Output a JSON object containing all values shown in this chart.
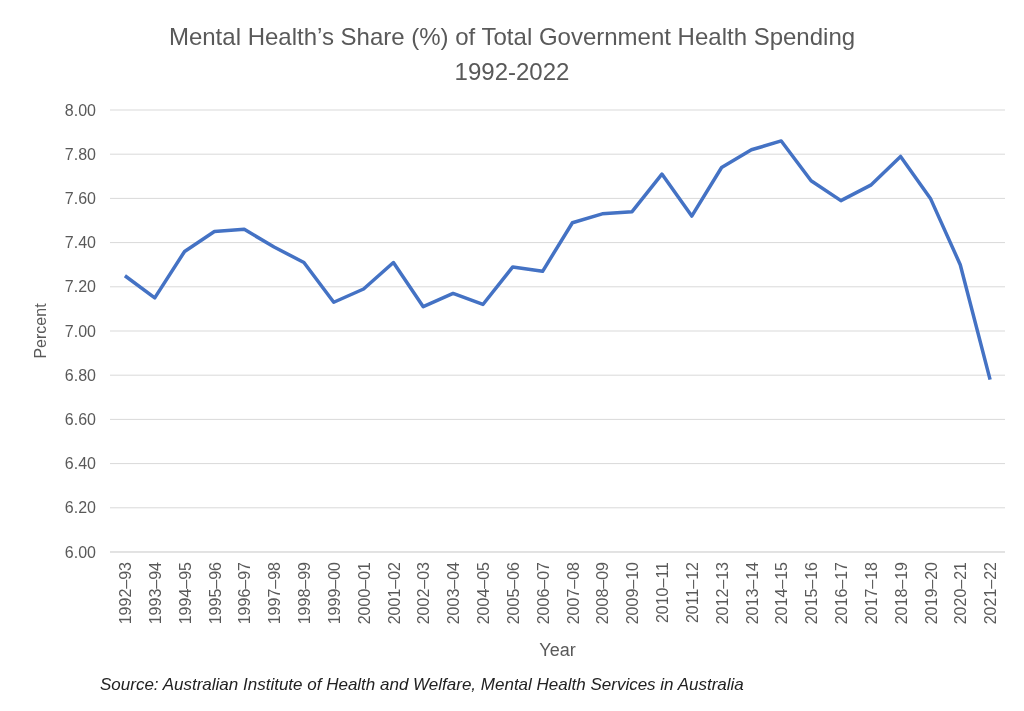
{
  "chart_data": {
    "type": "line",
    "title": "Mental Health’s Share (%) of Total Government Health Spending",
    "subtitle": "1992-2022",
    "xlabel": "Year",
    "ylabel": "Percent",
    "annotations": [
      "Source: Australian Institute of Health and Welfare, Mental Health Services in Australia"
    ],
    "categories": [
      "1992–93",
      "1993–94",
      "1994–95",
      "1995–96",
      "1996–97",
      "1997–98",
      "1998–99",
      "1999–00",
      "2000–01",
      "2001–02",
      "2002–03",
      "2003–04",
      "2004–05",
      "2005–06",
      "2006–07",
      "2007–08",
      "2008–09",
      "2009–10",
      "2010–11",
      "2011–12",
      "2012–13",
      "2013–14",
      "2014–15",
      "2015–16",
      "2016–17",
      "2017–18",
      "2018–19",
      "2019–20",
      "2020–21",
      "2021–22"
    ],
    "series": [
      {
        "color": "#4472c4",
        "values": [
          7.25,
          7.15,
          7.36,
          7.45,
          7.46,
          7.38,
          7.31,
          7.13,
          7.19,
          7.31,
          7.11,
          7.17,
          7.12,
          7.29,
          7.27,
          7.49,
          7.53,
          7.54,
          7.71,
          7.52,
          7.74,
          7.82,
          7.86,
          7.68,
          7.59,
          7.66,
          7.79,
          7.6,
          7.3,
          6.78
        ]
      }
    ],
    "ylim": [
      6,
      8
    ],
    "yticks": [
      {
        "value": 6,
        "label": "6.00"
      },
      {
        "value": 6.2,
        "label": "6.20"
      },
      {
        "value": 6.4,
        "label": "6.40"
      },
      {
        "value": 6.6,
        "label": "6.60"
      },
      {
        "value": 6.8,
        "label": "6.80"
      },
      {
        "value": 7,
        "label": "7.00"
      },
      {
        "value": 7.2,
        "label": "7.20"
      },
      {
        "value": 7.4,
        "label": "7.40"
      },
      {
        "value": 7.6,
        "label": "7.60"
      },
      {
        "value": 7.8,
        "label": "7.80"
      },
      {
        "value": 8,
        "label": "8.00"
      }
    ],
    "grid": "y",
    "marker": "none",
    "line_style": "solid"
  }
}
